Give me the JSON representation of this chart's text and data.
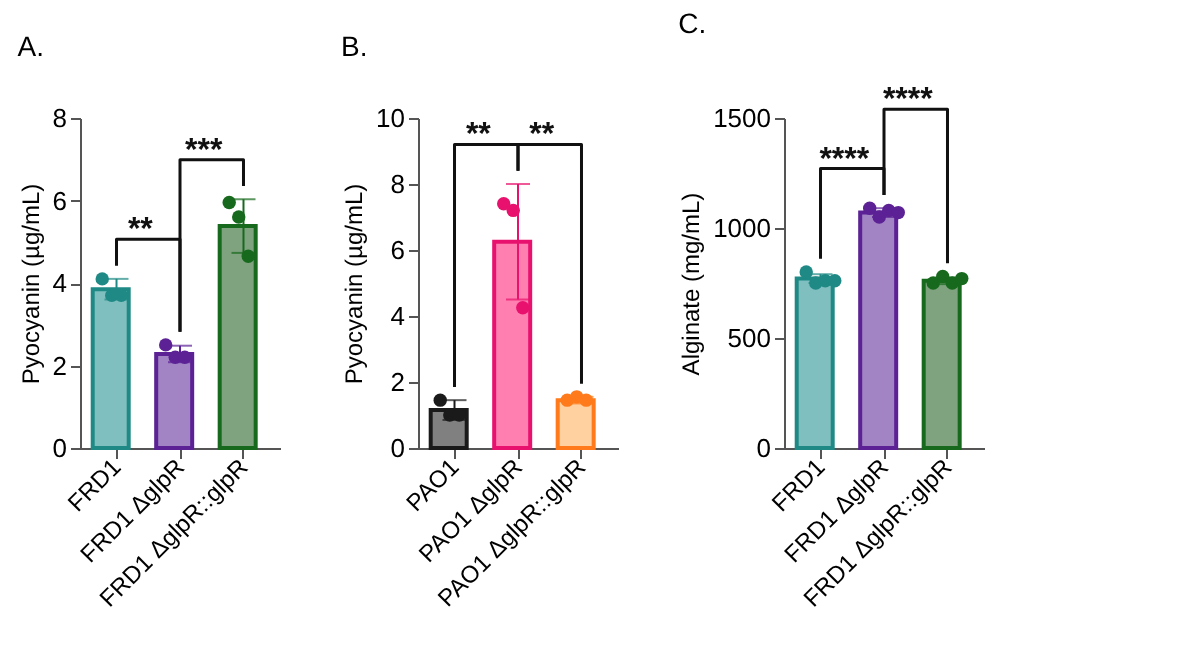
{
  "chart_data": [
    {
      "type": "bar",
      "title": "A.",
      "ylabel": "Pyocyanin (µg/mL)",
      "categories": [
        "FRD1",
        "FRD1 ΔglpR",
        "FRD1 ΔglpR::glpR"
      ],
      "values": [
        3.85,
        2.28,
        5.38
      ],
      "errors": [
        0.25,
        0.2,
        0.65
      ],
      "colors": [
        "#7fbfbf",
        "#a283c4",
        "#7fa27f"
      ],
      "series": [
        {
          "type": "scatter",
          "x": [
            "FRD1",
            "FRD1",
            "FRD1",
            "FRD1 ΔglpR",
            "FRD1 ΔglpR",
            "FRD1 ΔglpR",
            "FRD1 ΔglpR::glpR",
            "FRD1 ΔglpR::glpR",
            "FRD1 ΔglpR::glpR"
          ],
          "values": [
            4.1,
            3.7,
            3.7,
            2.5,
            2.2,
            2.2,
            5.95,
            5.6,
            4.65
          ],
          "colors": [
            "#1f8a85",
            "#1f8a85",
            "#1f8a85",
            "#5b2195",
            "#5b2195",
            "#5b2195",
            "#176a1d",
            "#176a1d",
            "#176a1d"
          ]
        }
      ],
      "ylim": [
        0,
        8
      ],
      "yticks": [
        0,
        2,
        4,
        6,
        8
      ],
      "grid": false,
      "annotations": [
        "**",
        "***"
      ]
    },
    {
      "type": "bar",
      "title": "B.",
      "ylabel": "Pyocyanin (µg/mL)",
      "categories": [
        "PAO1",
        "PAO1 ΔglpR",
        "PAO1 ΔglpR::glpR"
      ],
      "values": [
        1.15,
        6.25,
        1.45
      ],
      "errors": [
        0.3,
        1.75,
        0.1
      ],
      "colors": [
        "#808080",
        "#ff80b0",
        "#ffd0a0"
      ],
      "series": [
        {
          "type": "scatter",
          "x": [
            "PAO1",
            "PAO1",
            "PAO1",
            "PAO1 ΔglpR",
            "PAO1 ΔglpR",
            "PAO1 ΔglpR",
            "PAO1 ΔglpR::glpR",
            "PAO1 ΔglpR::glpR",
            "PAO1 ΔglpR::glpR"
          ],
          "values": [
            1.45,
            1.0,
            1.0,
            7.4,
            7.2,
            4.25,
            1.45,
            1.55,
            1.45
          ],
          "colors": [
            "#1a1a1a",
            "#1a1a1a",
            "#1a1a1a",
            "#e8126e",
            "#e8126e",
            "#e8126e",
            "#ff7a1a",
            "#ff7a1a",
            "#ff7a1a"
          ]
        }
      ],
      "ylim": [
        0,
        10
      ],
      "yticks": [
        0,
        2,
        4,
        6,
        8,
        10
      ],
      "grid": false,
      "annotations": [
        "**",
        "**"
      ]
    },
    {
      "type": "bar",
      "title": "C.",
      "ylabel": "Alginate (mg/mL)",
      "categories": [
        "FRD1",
        "FRD1 ΔglpR",
        "FRD1 ΔglpR::glpR"
      ],
      "values": [
        770,
        1070,
        760
      ],
      "errors": [
        20,
        20,
        15
      ],
      "colors": [
        "#7fbfbf",
        "#a283c4",
        "#7fa27f"
      ],
      "series": [
        {
          "type": "scatter",
          "x": [
            "FRD1",
            "FRD1",
            "FRD1",
            "FRD1",
            "FRD1 ΔglpR",
            "FRD1 ΔglpR",
            "FRD1 ΔglpR",
            "FRD1 ΔglpR",
            "FRD1 ΔglpR::glpR",
            "FRD1 ΔglpR::glpR",
            "FRD1 ΔglpR::glpR",
            "FRD1 ΔglpR::glpR"
          ],
          "values": [
            800,
            750,
            760,
            760,
            1090,
            1050,
            1080,
            1070,
            750,
            780,
            750,
            770
          ],
          "colors": [
            "#1f8a85",
            "#1f8a85",
            "#1f8a85",
            "#1f8a85",
            "#5b2195",
            "#5b2195",
            "#5b2195",
            "#5b2195",
            "#176a1d",
            "#176a1d",
            "#176a1d",
            "#176a1d"
          ]
        }
      ],
      "ylim": [
        0,
        1500
      ],
      "yticks": [
        0,
        500,
        1000,
        1500
      ],
      "grid": false,
      "annotations": [
        "****",
        "****"
      ]
    }
  ]
}
